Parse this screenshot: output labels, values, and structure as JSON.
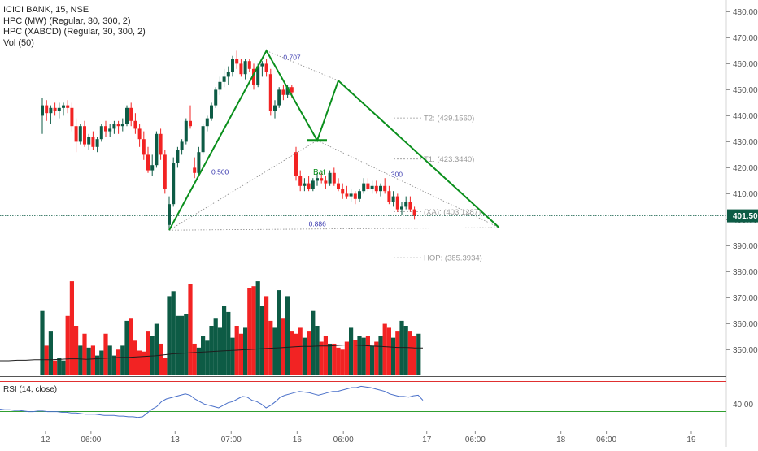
{
  "legend": {
    "symbol_line": "ICICI BANK, 15, NSE",
    "indicator_1": "HPC (MW) (Regular, 30, 300, 2)",
    "indicator_2": "HPC (XABCD) (Regular, 30, 300, 2)",
    "indicator_3": "Vol (50)"
  },
  "colors": {
    "up_candle": "#0d5b45",
    "down_candle": "#f22323",
    "pattern_line": "#0a8f1c",
    "price_line": "#0d5b45",
    "rsi_line": "#4a70c9",
    "rsi_upper": "#e03030",
    "rsi_lower": "#30a030"
  },
  "chart_data": [
    {
      "type": "candlestick",
      "name": "price",
      "y_axis_ticks": [
        "480.00",
        "470.00",
        "460.00",
        "450.00",
        "440.00",
        "430.00",
        "420.00",
        "410.00",
        "400.00",
        "390.00",
        "380.00",
        "370.00",
        "360.00",
        "350.00"
      ],
      "ylim": [
        342,
        482
      ],
      "last_price": "401.50",
      "pattern": {
        "label": "Bat",
        "points": [
          {
            "x": 30,
            "y": 396.0
          },
          {
            "x": 53,
            "y": 465.0
          },
          {
            "x": 65,
            "y": 430.5
          },
          {
            "x": 70,
            "y": 453.5
          },
          {
            "x": 108,
            "y": 397.0
          }
        ],
        "ratios": [
          {
            "text": "0.500",
            "x": 40,
            "y": 417.5
          },
          {
            "text": "0.707",
            "x": 57,
            "y": 461.5
          },
          {
            "text": ".300",
            "x": 82,
            "y": 416.5
          },
          {
            "text": "0.886",
            "x": 63,
            "y": 397.5
          }
        ]
      },
      "levels": [
        {
          "text": "T2: (439.1560)",
          "value": 439.156
        },
        {
          "text": "T1: (423.3440)",
          "value": 423.344
        },
        {
          "text": "(XA): (403.1287)",
          "value": 403.1287
        },
        {
          "text": "HOP: (385.3934)",
          "value": 385.3934
        }
      ],
      "candles": [
        {
          "o": 440,
          "h": 447,
          "l": 433,
          "c": 444
        },
        {
          "o": 444,
          "h": 446,
          "l": 438,
          "c": 441
        },
        {
          "o": 441,
          "h": 444,
          "l": 437,
          "c": 443
        },
        {
          "o": 443,
          "h": 445,
          "l": 440,
          "c": 442
        },
        {
          "o": 442,
          "h": 445,
          "l": 439,
          "c": 443
        },
        {
          "o": 443,
          "h": 445,
          "l": 440,
          "c": 444
        },
        {
          "o": 444,
          "h": 446,
          "l": 441,
          "c": 443
        },
        {
          "o": 443,
          "h": 445,
          "l": 434,
          "c": 436
        },
        {
          "o": 436,
          "h": 439,
          "l": 426,
          "c": 430
        },
        {
          "o": 430,
          "h": 437,
          "l": 429,
          "c": 436
        },
        {
          "o": 436,
          "h": 438,
          "l": 428,
          "c": 429
        },
        {
          "o": 429,
          "h": 433,
          "l": 427,
          "c": 432
        },
        {
          "o": 432,
          "h": 434,
          "l": 427,
          "c": 428
        },
        {
          "o": 428,
          "h": 432,
          "l": 426,
          "c": 431
        },
        {
          "o": 431,
          "h": 437,
          "l": 430,
          "c": 436
        },
        {
          "o": 436,
          "h": 438,
          "l": 432,
          "c": 434
        },
        {
          "o": 434,
          "h": 437,
          "l": 432,
          "c": 435
        },
        {
          "o": 435,
          "h": 438,
          "l": 433,
          "c": 437
        },
        {
          "o": 437,
          "h": 438,
          "l": 433,
          "c": 436
        },
        {
          "o": 436,
          "h": 439,
          "l": 434,
          "c": 437
        },
        {
          "o": 437,
          "h": 444,
          "l": 436,
          "c": 443
        },
        {
          "o": 443,
          "h": 445,
          "l": 436,
          "c": 438
        },
        {
          "o": 438,
          "h": 441,
          "l": 433,
          "c": 435
        },
        {
          "o": 435,
          "h": 437,
          "l": 428,
          "c": 431
        },
        {
          "o": 431,
          "h": 434,
          "l": 423,
          "c": 425
        },
        {
          "o": 425,
          "h": 428,
          "l": 418,
          "c": 419
        },
        {
          "o": 419,
          "h": 425,
          "l": 417,
          "c": 421
        },
        {
          "o": 421,
          "h": 434,
          "l": 420,
          "c": 433
        },
        {
          "o": 433,
          "h": 435,
          "l": 423,
          "c": 425
        },
        {
          "o": 425,
          "h": 427,
          "l": 410,
          "c": 412
        },
        {
          "o": 398,
          "h": 409,
          "l": 396,
          "c": 406
        },
        {
          "o": 406,
          "h": 424,
          "l": 405,
          "c": 422
        },
        {
          "o": 422,
          "h": 428,
          "l": 420,
          "c": 427
        },
        {
          "o": 427,
          "h": 431,
          "l": 425,
          "c": 430
        },
        {
          "o": 430,
          "h": 439,
          "l": 429,
          "c": 438
        },
        {
          "o": 438,
          "h": 444,
          "l": 435,
          "c": 436
        },
        {
          "o": 420,
          "h": 424,
          "l": 416,
          "c": 418
        },
        {
          "o": 418,
          "h": 428,
          "l": 417,
          "c": 426
        },
        {
          "o": 426,
          "h": 437,
          "l": 425,
          "c": 436
        },
        {
          "o": 436,
          "h": 440,
          "l": 434,
          "c": 439
        },
        {
          "o": 439,
          "h": 445,
          "l": 438,
          "c": 444
        },
        {
          "o": 444,
          "h": 451,
          "l": 443,
          "c": 450
        },
        {
          "o": 450,
          "h": 455,
          "l": 448,
          "c": 453
        },
        {
          "o": 453,
          "h": 458,
          "l": 451,
          "c": 455
        },
        {
          "o": 455,
          "h": 459,
          "l": 452,
          "c": 457
        },
        {
          "o": 457,
          "h": 463,
          "l": 455,
          "c": 462
        },
        {
          "o": 462,
          "h": 465,
          "l": 458,
          "c": 460
        },
        {
          "o": 460,
          "h": 462,
          "l": 455,
          "c": 456
        },
        {
          "o": 456,
          "h": 462,
          "l": 454,
          "c": 461
        },
        {
          "o": 461,
          "h": 462,
          "l": 457,
          "c": 458
        },
        {
          "o": 458,
          "h": 460,
          "l": 450,
          "c": 452
        },
        {
          "o": 452,
          "h": 460,
          "l": 451,
          "c": 459
        },
        {
          "o": 459,
          "h": 461,
          "l": 455,
          "c": 460
        },
        {
          "o": 460,
          "h": 462,
          "l": 455,
          "c": 457
        },
        {
          "o": 456,
          "h": 458,
          "l": 440,
          "c": 442
        },
        {
          "o": 442,
          "h": 446,
          "l": 439,
          "c": 444
        },
        {
          "o": 444,
          "h": 451,
          "l": 443,
          "c": 450
        },
        {
          "o": 450,
          "h": 452,
          "l": 446,
          "c": 448
        },
        {
          "o": 448,
          "h": 452,
          "l": 447,
          "c": 451
        },
        {
          "o": 451,
          "h": 452,
          "l": 447,
          "c": 449
        },
        {
          "o": 426,
          "h": 428,
          "l": 415,
          "c": 417
        },
        {
          "o": 417,
          "h": 419,
          "l": 411,
          "c": 413
        },
        {
          "o": 413,
          "h": 416,
          "l": 411,
          "c": 414
        },
        {
          "o": 414,
          "h": 417,
          "l": 411,
          "c": 412
        },
        {
          "o": 412,
          "h": 416,
          "l": 411,
          "c": 415
        },
        {
          "o": 415,
          "h": 418,
          "l": 413,
          "c": 416
        },
        {
          "o": 416,
          "h": 418,
          "l": 414,
          "c": 415
        },
        {
          "o": 415,
          "h": 417,
          "l": 412,
          "c": 414
        },
        {
          "o": 414,
          "h": 419,
          "l": 413,
          "c": 418
        },
        {
          "o": 418,
          "h": 420,
          "l": 413,
          "c": 414
        },
        {
          "o": 414,
          "h": 416,
          "l": 411,
          "c": 412
        },
        {
          "o": 412,
          "h": 414,
          "l": 408,
          "c": 410
        },
        {
          "o": 410,
          "h": 413,
          "l": 408,
          "c": 409
        },
        {
          "o": 409,
          "h": 412,
          "l": 407,
          "c": 410
        },
        {
          "o": 410,
          "h": 411,
          "l": 406,
          "c": 408
        },
        {
          "o": 408,
          "h": 412,
          "l": 407,
          "c": 411
        },
        {
          "o": 411,
          "h": 416,
          "l": 410,
          "c": 414
        },
        {
          "o": 414,
          "h": 416,
          "l": 411,
          "c": 412
        },
        {
          "o": 412,
          "h": 415,
          "l": 410,
          "c": 413
        },
        {
          "o": 413,
          "h": 415,
          "l": 410,
          "c": 411
        },
        {
          "o": 411,
          "h": 414,
          "l": 409,
          "c": 413
        },
        {
          "o": 413,
          "h": 416,
          "l": 410,
          "c": 411
        },
        {
          "o": 411,
          "h": 413,
          "l": 406,
          "c": 407
        },
        {
          "o": 407,
          "h": 411,
          "l": 405,
          "c": 409
        },
        {
          "o": 409,
          "h": 410,
          "l": 403,
          "c": 404
        },
        {
          "o": 404,
          "h": 407,
          "l": 402,
          "c": 405
        },
        {
          "o": 405,
          "h": 409,
          "l": 404,
          "c": 407
        },
        {
          "o": 407,
          "h": 409,
          "l": 403,
          "c": 404
        },
        {
          "o": 404,
          "h": 405,
          "l": 400,
          "c": 401.5
        }
      ]
    },
    {
      "type": "bar",
      "name": "volume",
      "values": [
        65,
        30,
        45,
        15,
        18,
        15,
        60,
        95,
        50,
        30,
        42,
        28,
        30,
        20,
        25,
        42,
        30,
        20,
        26,
        30,
        55,
        58,
        35,
        25,
        24,
        45,
        40,
        52,
        32,
        18,
        80,
        85,
        60,
        60,
        62,
        92,
        32,
        28,
        40,
        35,
        50,
        58,
        48,
        70,
        64,
        38,
        50,
        42,
        48,
        88,
        90,
        95,
        70,
        80,
        55,
        48,
        86,
        58,
        80,
        45,
        42,
        48,
        38,
        45,
        65,
        50,
        34,
        40,
        32,
        32,
        28,
        26,
        34,
        48,
        36,
        40,
        38,
        40,
        30,
        34,
        40,
        52,
        48,
        38,
        45,
        55,
        50,
        45,
        40,
        42
      ],
      "ma_line": [
        18,
        18,
        19,
        19,
        20,
        20,
        20,
        21,
        22,
        22,
        21,
        22,
        23,
        24,
        25,
        25,
        26,
        27,
        28,
        30,
        32,
        33,
        34,
        35,
        36,
        37,
        38,
        39,
        40,
        41,
        42,
        43,
        44,
        45,
        46,
        47,
        47,
        48,
        48,
        49,
        50,
        50,
        49,
        48,
        47,
        46,
        45,
        45,
        44,
        44
      ]
    },
    {
      "type": "line",
      "name": "rsi",
      "legend": "RSI (14, close)",
      "y_tick": "40.00",
      "upper": 70,
      "lower": 30,
      "values": [
        36,
        35,
        35,
        34,
        34,
        33,
        32,
        32,
        33,
        33,
        32,
        32,
        32,
        31,
        31,
        30,
        30,
        29,
        28,
        28,
        28,
        27,
        26,
        26,
        26,
        25,
        25,
        24,
        24,
        23,
        24,
        30,
        36,
        40,
        48,
        52,
        54,
        56,
        58,
        60,
        58,
        52,
        48,
        44,
        42,
        40,
        38,
        42,
        46,
        48,
        52,
        56,
        55,
        50,
        48,
        44,
        38,
        42,
        48,
        55,
        58,
        60,
        62,
        64,
        63,
        62,
        60,
        58,
        60,
        62,
        64,
        64,
        66,
        68,
        70,
        70,
        72,
        71,
        70,
        68,
        66,
        64,
        60,
        58,
        56,
        56,
        55,
        57,
        58,
        50
      ]
    },
    {
      "type": "axis",
      "name": "time",
      "x_ticks": [
        {
          "label": "12",
          "pos": 0.06
        },
        {
          "label": "06:00",
          "pos": 0.12
        },
        {
          "label": "13",
          "pos": 0.231
        },
        {
          "label": "07:00",
          "pos": 0.305
        },
        {
          "label": "16",
          "pos": 0.392
        },
        {
          "label": "06:00",
          "pos": 0.453
        },
        {
          "label": "17",
          "pos": 0.563
        },
        {
          "label": "06:00",
          "pos": 0.627
        },
        {
          "label": "18",
          "pos": 0.74
        },
        {
          "label": "06:00",
          "pos": 0.8
        },
        {
          "label": "19",
          "pos": 0.912
        }
      ]
    }
  ]
}
